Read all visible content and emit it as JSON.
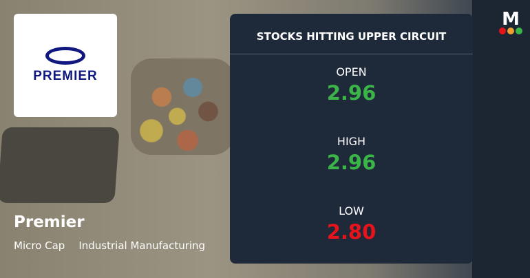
{
  "company": {
    "logo_text": "PREMIER",
    "name": "Premier",
    "tags": [
      "Micro Cap",
      "Industrial Manufacturing"
    ]
  },
  "panel": {
    "title": "STOCKS HITTING UPPER CIRCUIT",
    "rows": [
      {
        "label": "OPEN",
        "value": "2.96",
        "color": "#3cb548"
      },
      {
        "label": "HIGH",
        "value": "2.96",
        "color": "#3cb548"
      },
      {
        "label": "LOW",
        "value": "2.80",
        "color": "#e8141c"
      }
    ]
  },
  "brand": {
    "letter": "M",
    "dot_colors": [
      "#e8141c",
      "#f0a030",
      "#3cb548"
    ]
  }
}
